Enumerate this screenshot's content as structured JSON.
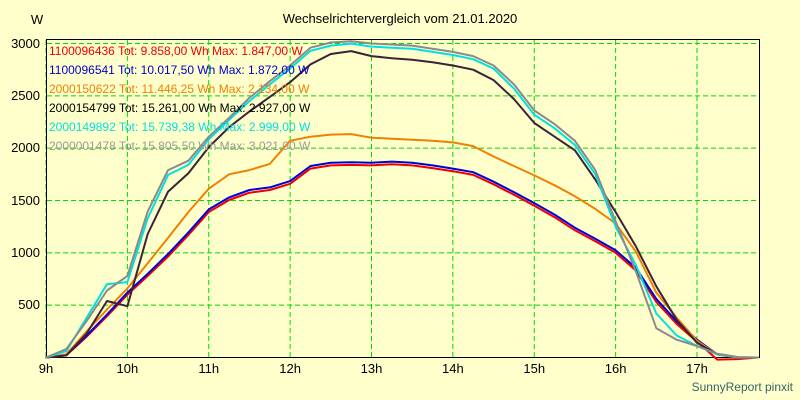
{
  "title": "Wechselrichtervergleich vom 21.01.2020",
  "y_unit_label": "W",
  "footer": "SunnyReport pinxit",
  "colors": {
    "background": "#FFFFCC",
    "grid": "#00D800",
    "axis": "#000000",
    "title_text": "#000000",
    "footer_text": "#336666"
  },
  "chart_data": {
    "type": "line",
    "title": "Wechselrichtervergleich vom 21.01.2020",
    "xlabel": "time of day (hours)",
    "ylabel": "W",
    "ylim": [
      0,
      3000
    ],
    "xlim": [
      9,
      17.77
    ],
    "grid": true,
    "legend_position": "top-left",
    "legend_format": "{name} Tot: {tot} Wh Max: {max} W",
    "x_tick_labels": [
      "9h",
      "10h",
      "11h",
      "12h",
      "13h",
      "14h",
      "15h",
      "16h",
      "17h"
    ],
    "x_tick_hours": [
      9,
      10,
      11,
      12,
      13,
      14,
      15,
      16,
      17
    ],
    "y_tick_values": [
      500,
      1000,
      1500,
      2000,
      2500,
      3000
    ],
    "x_hours": [
      9,
      9.25,
      9.5,
      9.75,
      10,
      10.25,
      10.5,
      10.75,
      11,
      11.25,
      11.5,
      11.75,
      12,
      12.25,
      12.5,
      12.75,
      13,
      13.25,
      13.5,
      13.75,
      14,
      14.25,
      14.5,
      14.75,
      15,
      15.25,
      15.5,
      15.75,
      16,
      16.25,
      16.5,
      16.75,
      17,
      17.25,
      17.5,
      17.75
    ],
    "series": [
      {
        "name": "1100096436",
        "tot": "9.858,00",
        "max": "1.847,00",
        "color": "#EE0000",
        "text_color": "#EE0000",
        "values": [
          0,
          20,
          200,
          395,
          600,
          780,
          965,
          1170,
          1390,
          1505,
          1575,
          1600,
          1660,
          1805,
          1835,
          1840,
          1835,
          1847,
          1835,
          1810,
          1780,
          1745,
          1655,
          1555,
          1450,
          1340,
          1215,
          1110,
          1000,
          830,
          530,
          320,
          150,
          -20,
          -15,
          0
        ]
      },
      {
        "name": "1100096541",
        "tot": "10.017,50",
        "max": "1.872,00",
        "color": "#0000DD",
        "text_color": "#0000CC",
        "values": [
          0,
          25,
          210,
          410,
          620,
          800,
          990,
          1195,
          1415,
          1530,
          1600,
          1625,
          1685,
          1830,
          1860,
          1865,
          1860,
          1872,
          1860,
          1835,
          1805,
          1770,
          1680,
          1580,
          1475,
          1365,
          1240,
          1135,
          1025,
          855,
          560,
          345,
          170,
          30,
          0,
          0
        ]
      },
      {
        "name": "2000150622",
        "tot": "11.446,25",
        "max": "2.134,00",
        "color": "#F08000",
        "text_color": "#F08000",
        "values": [
          0,
          30,
          250,
          460,
          660,
          900,
          1145,
          1390,
          1613,
          1750,
          1790,
          1850,
          2070,
          2110,
          2130,
          2134,
          2100,
          2090,
          2080,
          2070,
          2055,
          2020,
          1920,
          1830,
          1740,
          1645,
          1540,
          1420,
          1280,
          1010,
          620,
          380,
          160,
          30,
          0,
          0
        ]
      },
      {
        "name": "2000154799",
        "tot": "15.261,00",
        "max": "2.927,00",
        "color": "#3A2238",
        "text_color": "#000000",
        "values": [
          0,
          20,
          230,
          540,
          490,
          1180,
          1585,
          1760,
          2010,
          2200,
          2350,
          2490,
          2630,
          2800,
          2900,
          2927,
          2880,
          2860,
          2845,
          2820,
          2790,
          2750,
          2650,
          2470,
          2240,
          2110,
          1980,
          1700,
          1390,
          1060,
          680,
          360,
          140,
          30,
          0,
          0
        ]
      },
      {
        "name": "2000149892",
        "tot": "15.739,38",
        "max": "2.999,00",
        "color": "#00E0E0",
        "text_color": "#00E0E0",
        "values": [
          0,
          60,
          380,
          700,
          720,
          1330,
          1745,
          1840,
          2085,
          2270,
          2450,
          2610,
          2760,
          2930,
          2980,
          2999,
          2970,
          2960,
          2950,
          2920,
          2890,
          2850,
          2760,
          2570,
          2320,
          2190,
          2030,
          1750,
          1250,
          880,
          420,
          210,
          110,
          30,
          0,
          0
        ]
      },
      {
        "name": "2000001478",
        "tot": "15.805,50",
        "max": "3.021,00",
        "color": "#8A8A8A",
        "text_color": "#9A9A9A",
        "values": [
          0,
          80,
          350,
          640,
          780,
          1395,
          1790,
          1880,
          2110,
          2290,
          2480,
          2640,
          2790,
          2960,
          3010,
          3021,
          3000,
          2990,
          2980,
          2950,
          2920,
          2880,
          2790,
          2610,
          2360,
          2230,
          2070,
          1790,
          1300,
          820,
          280,
          170,
          110,
          35,
          5,
          0
        ]
      }
    ]
  }
}
